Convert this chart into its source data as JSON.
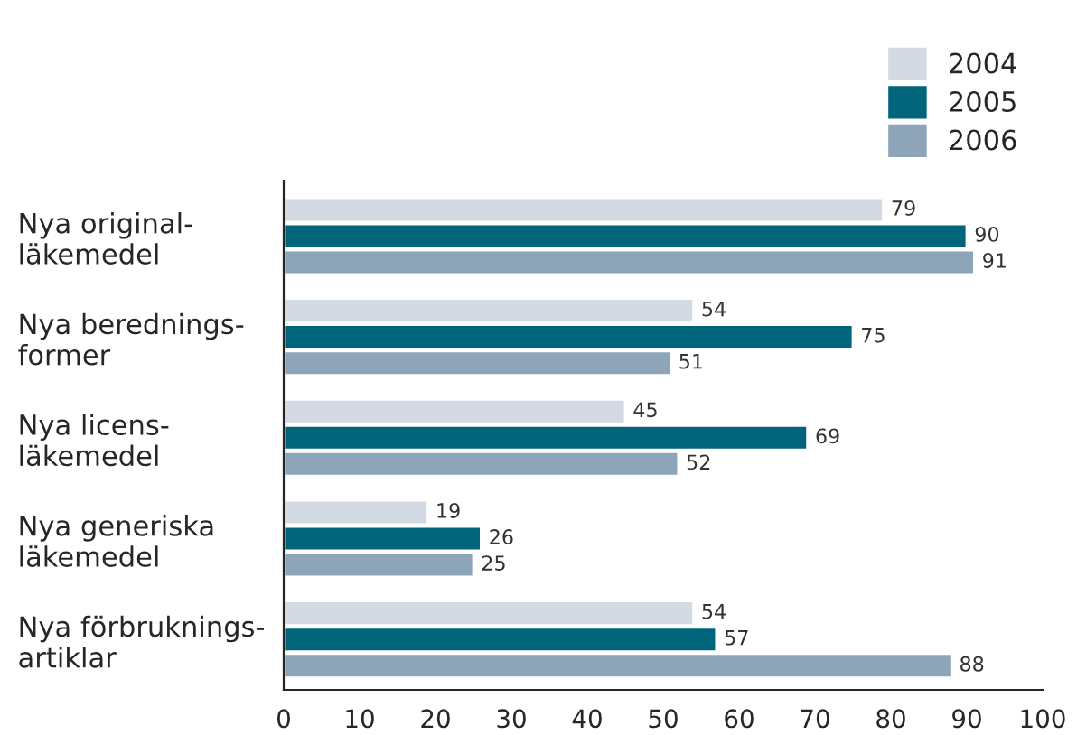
{
  "chart_data": {
    "type": "bar",
    "orientation": "horizontal",
    "categories": [
      "Nya original-\nläkemedel",
      "Nya berednings-\nformer",
      "Nya licens-\nläkemedel",
      "Nya generiska\nläkemedel",
      "Nya förbruknings-\nartiklar"
    ],
    "series": [
      {
        "name": "2004",
        "color": "#d3dae4",
        "values": [
          79,
          54,
          45,
          19,
          54
        ]
      },
      {
        "name": "2005",
        "color": "#00657a",
        "values": [
          90,
          75,
          69,
          26,
          57
        ]
      },
      {
        "name": "2006",
        "color": "#8ea4b8",
        "values": [
          91,
          51,
          52,
          25,
          88
        ]
      }
    ],
    "xlim": [
      0,
      100
    ],
    "xticks": [
      0,
      10,
      20,
      30,
      40,
      50,
      60,
      70,
      80,
      90,
      100
    ],
    "data_labels": true,
    "grid": false,
    "legend": "top right"
  }
}
